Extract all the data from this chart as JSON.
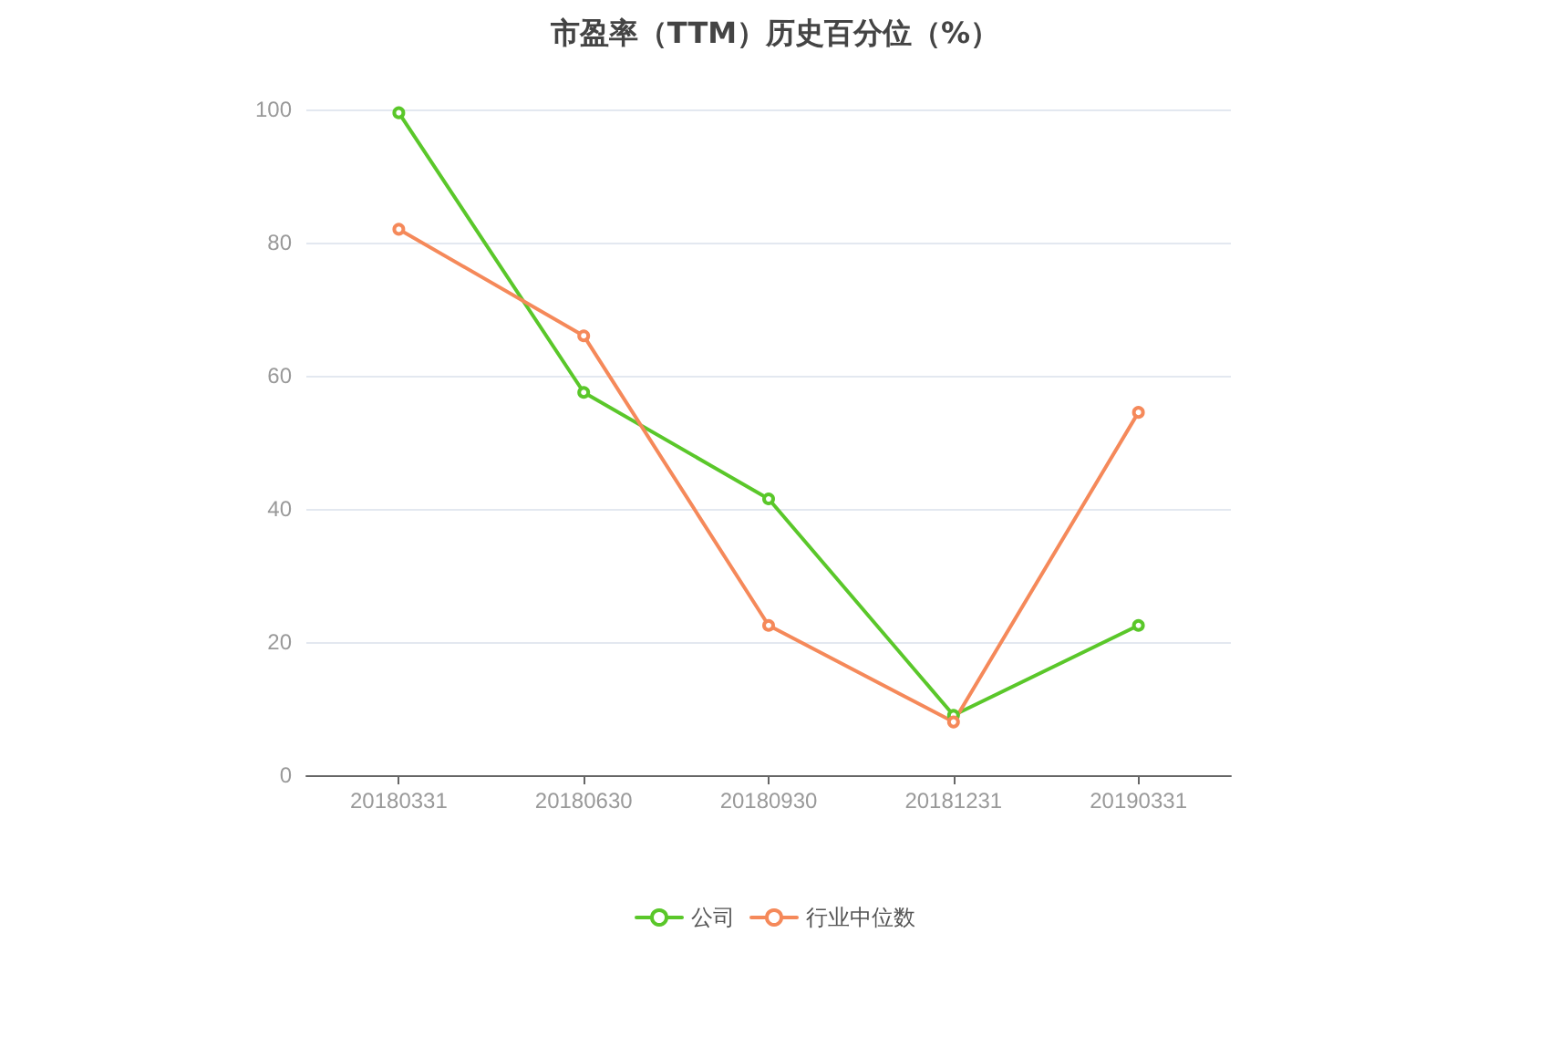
{
  "chart_data": {
    "type": "line",
    "title": "市盈率（TTM）历史百分位（%）",
    "categories": [
      "20180331",
      "20180630",
      "20180930",
      "20181231",
      "20190331"
    ],
    "series": [
      {
        "name": "公司",
        "color": "#5ac72a",
        "values": [
          99.5,
          57.5,
          41.5,
          9,
          22.5
        ]
      },
      {
        "name": "行业中位数",
        "color": "#f5895a",
        "values": [
          82,
          66,
          22.5,
          8,
          54.5
        ]
      }
    ],
    "ylim": [
      0,
      100
    ],
    "yticks": [
      0,
      20,
      40,
      60,
      80,
      100
    ],
    "grid": "y",
    "legend": "bottom",
    "marker": "circle",
    "line_style": "solid"
  }
}
